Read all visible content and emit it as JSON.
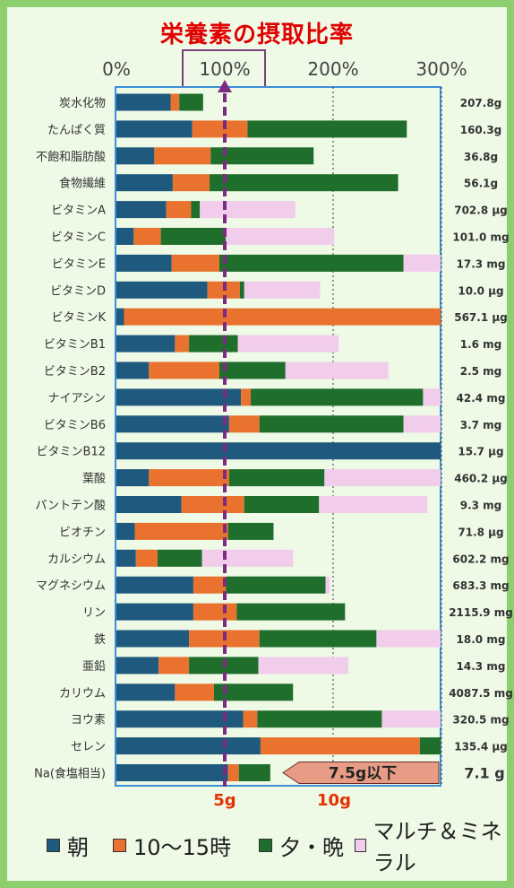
{
  "title": "栄養素の摂取比率",
  "chart_data": {
    "type": "bar",
    "orientation": "horizontal",
    "stacked": true,
    "xlim": [
      0,
      300
    ],
    "x_ticks": [
      "0%",
      "100%",
      "200%",
      "300%"
    ],
    "reference_line": 100,
    "categories": [
      "炭水化物",
      "たんぱく質",
      "不飽和脂肪酸",
      "食物繊維",
      "ビタミンA",
      "ビタミンC",
      "ビタミンE",
      "ビタミンD",
      "ビタミンK",
      "ビタミンB1",
      "ビタミンB2",
      "ナイアシン",
      "ビタミンB6",
      "ビタミンB12",
      "葉酸",
      "パントテン酸",
      "ビオチン",
      "カルシウム",
      "マグネシウム",
      "リン",
      "鉄",
      "亜鉛",
      "カリウム",
      "ヨウ素",
      "セレン",
      "Na(食塩相当)"
    ],
    "intake_labels": [
      "207.8g",
      "160.3g",
      "36.8g",
      "56.1g",
      "702.8 µg",
      "101.0 mg",
      "17.3 mg",
      "10.0 µg",
      "567.1 µg",
      "1.6 mg",
      "2.5 mg",
      "42.4 mg",
      "3.7 mg",
      "15.7 µg",
      "460.2 µg",
      "9.3 mg",
      "71.8 µg",
      "602.2 mg",
      "683.3 mg",
      "2115.9 mg",
      "18.0 mg",
      "14.3 mg",
      "4087.5 mg",
      "320.5 mg",
      "135.4 µg",
      "7.1 g"
    ],
    "series": [
      {
        "name": "朝",
        "color": "#1f5a7e",
        "values": [
          50,
          70,
          35,
          52,
          46,
          16,
          51,
          84,
          7,
          54,
          30,
          115,
          104,
          300,
          30,
          60,
          17,
          18,
          71,
          71,
          67,
          39,
          54,
          117,
          133,
          103
        ]
      },
      {
        "name": "10～15時",
        "color": "#e8722e",
        "values": [
          8,
          51,
          52,
          34,
          23,
          25,
          44,
          30,
          293,
          13,
          65,
          9,
          28,
          0,
          74,
          58,
          86,
          20,
          30,
          40,
          65,
          28,
          36,
          13,
          147,
          10
        ]
      },
      {
        "name": "夕・晩",
        "color": "#1f6e2c",
        "values": [
          22,
          147,
          95,
          174,
          8,
          60,
          170,
          4,
          0,
          45,
          61,
          159,
          133,
          0,
          88,
          69,
          42,
          41,
          92,
          100,
          108,
          64,
          73,
          115,
          20,
          29
        ]
      },
      {
        "name": "マルチ＆ミネラル",
        "color": "#f1cdeb",
        "values": [
          0,
          0,
          0,
          0,
          88,
          100,
          35,
          70,
          0,
          93,
          95,
          17,
          36,
          0,
          108,
          100,
          0,
          84,
          4,
          0,
          62,
          83,
          0,
          55,
          0,
          0
        ]
      }
    ],
    "sodium_axis_labels": [
      "5g",
      "10g"
    ],
    "sodium_target_label": "7.5g以下"
  },
  "legend": [
    "朝",
    "10～15時",
    "夕・晩",
    "マルチ＆ミネラル"
  ]
}
